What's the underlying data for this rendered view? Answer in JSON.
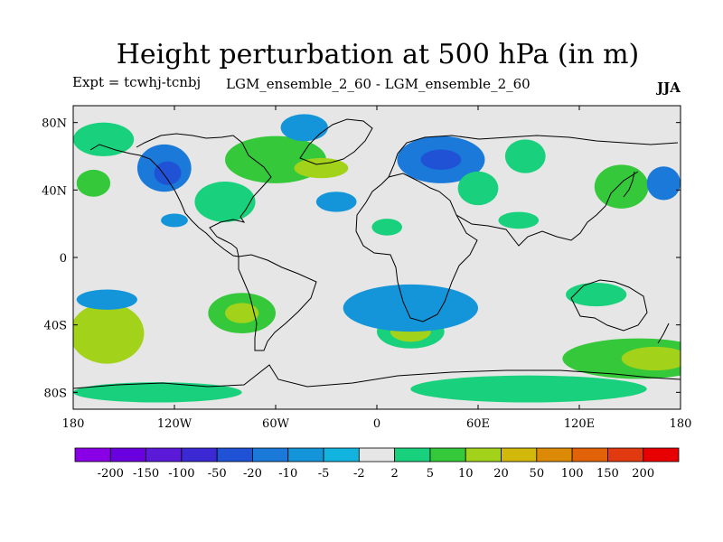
{
  "title": "Height perturbation at 500 hPa (in m)",
  "expt": "Expt = tcwhj-tcnbj",
  "ensemble": "LGM_ensemble_2_60 - LGM_ensemble_2_60",
  "season": "JJA",
  "chart_data": {
    "type": "heatmap",
    "title": "Height perturbation at 500 hPa (in m)",
    "xlabel": "",
    "ylabel": "",
    "xlim": [
      -180,
      180
    ],
    "ylim": [
      -90,
      90
    ],
    "x_ticks": [
      -180,
      -120,
      -60,
      0,
      60,
      120,
      180
    ],
    "x_tick_labels": [
      "180",
      "120W",
      "60W",
      "0",
      "60E",
      "120E",
      "180"
    ],
    "y_ticks": [
      80,
      40,
      0,
      -40,
      -80
    ],
    "y_tick_labels": [
      "80N",
      "40N",
      "0",
      "40S",
      "80S"
    ],
    "background_color": "#e6e6e6",
    "colorbar": {
      "levels": [
        "-200",
        "-150",
        "-100",
        "-50",
        "-20",
        "-10",
        "-5",
        "-2",
        "2",
        "5",
        "10",
        "20",
        "50",
        "100",
        "150",
        "200"
      ],
      "colors": [
        "#8a00e6",
        "#6a00e0",
        "#5a1ad8",
        "#3b2ad4",
        "#1f52d4",
        "#1a79d9",
        "#1495d9",
        "#13b3df",
        "#e6e6e6",
        "#19d17c",
        "#35c83a",
        "#a3d21a",
        "#d3b80c",
        "#dc8a06",
        "#e2620a",
        "#e23a10",
        "#e80000"
      ]
    },
    "anomalies": [
      {
        "lon": -60,
        "lat": 58,
        "rx": 30,
        "ry": 14,
        "value": 10
      },
      {
        "lon": -33,
        "lat": 53,
        "rx": 16,
        "ry": 6,
        "value": 20
      },
      {
        "lon": -126,
        "lat": 53,
        "rx": 16,
        "ry": 14,
        "value": -10
      },
      {
        "lon": -124,
        "lat": 50,
        "rx": 8,
        "ry": 7,
        "value": -20
      },
      {
        "lon": -168,
        "lat": 44,
        "rx": 10,
        "ry": 8,
        "value": 10
      },
      {
        "lon": -162,
        "lat": 70,
        "rx": 18,
        "ry": 10,
        "value": 5
      },
      {
        "lon": -90,
        "lat": 33,
        "rx": 18,
        "ry": 12,
        "value": 5
      },
      {
        "lon": -43,
        "lat": 77,
        "rx": 14,
        "ry": 8,
        "value": -5
      },
      {
        "lon": -24,
        "lat": 33,
        "rx": 12,
        "ry": 6,
        "value": -5
      },
      {
        "lon": 38,
        "lat": 58,
        "rx": 26,
        "ry": 14,
        "value": -10
      },
      {
        "lon": 38,
        "lat": 58,
        "rx": 12,
        "ry": 6,
        "value": -20
      },
      {
        "lon": 60,
        "lat": 41,
        "rx": 12,
        "ry": 10,
        "value": 5
      },
      {
        "lon": 88,
        "lat": 60,
        "rx": 12,
        "ry": 10,
        "value": 5
      },
      {
        "lon": 84,
        "lat": 22,
        "rx": 12,
        "ry": 5,
        "value": 5
      },
      {
        "lon": 145,
        "lat": 42,
        "rx": 16,
        "ry": 13,
        "value": 10
      },
      {
        "lon": 170,
        "lat": 44,
        "rx": 10,
        "ry": 10,
        "value": -10
      },
      {
        "lon": 6,
        "lat": 18,
        "rx": 9,
        "ry": 5,
        "value": 5
      },
      {
        "lon": -120,
        "lat": 22,
        "rx": 8,
        "ry": 4,
        "value": -5
      },
      {
        "lon": -160,
        "lat": -45,
        "rx": 22,
        "ry": 18,
        "value": 20
      },
      {
        "lon": -160,
        "lat": -25,
        "rx": 18,
        "ry": 6,
        "value": -5
      },
      {
        "lon": -80,
        "lat": -33,
        "rx": 20,
        "ry": 12,
        "value": 10
      },
      {
        "lon": -80,
        "lat": -33,
        "rx": 10,
        "ry": 6,
        "value": 20
      },
      {
        "lon": 20,
        "lat": -44,
        "rx": 20,
        "ry": 10,
        "value": 5
      },
      {
        "lon": 20,
        "lat": -44,
        "rx": 12,
        "ry": 6,
        "value": 20
      },
      {
        "lon": 20,
        "lat": -30,
        "rx": 40,
        "ry": 14,
        "value": -5
      },
      {
        "lon": 130,
        "lat": -22,
        "rx": 18,
        "ry": 7,
        "value": 5
      },
      {
        "lon": 155,
        "lat": -60,
        "rx": 45,
        "ry": 12,
        "value": 10
      },
      {
        "lon": 165,
        "lat": -60,
        "rx": 20,
        "ry": 7,
        "value": 20
      },
      {
        "lon": 90,
        "lat": -78,
        "rx": 70,
        "ry": 8,
        "value": 5
      },
      {
        "lon": -130,
        "lat": -80,
        "rx": 50,
        "ry": 6,
        "value": 5
      }
    ]
  }
}
